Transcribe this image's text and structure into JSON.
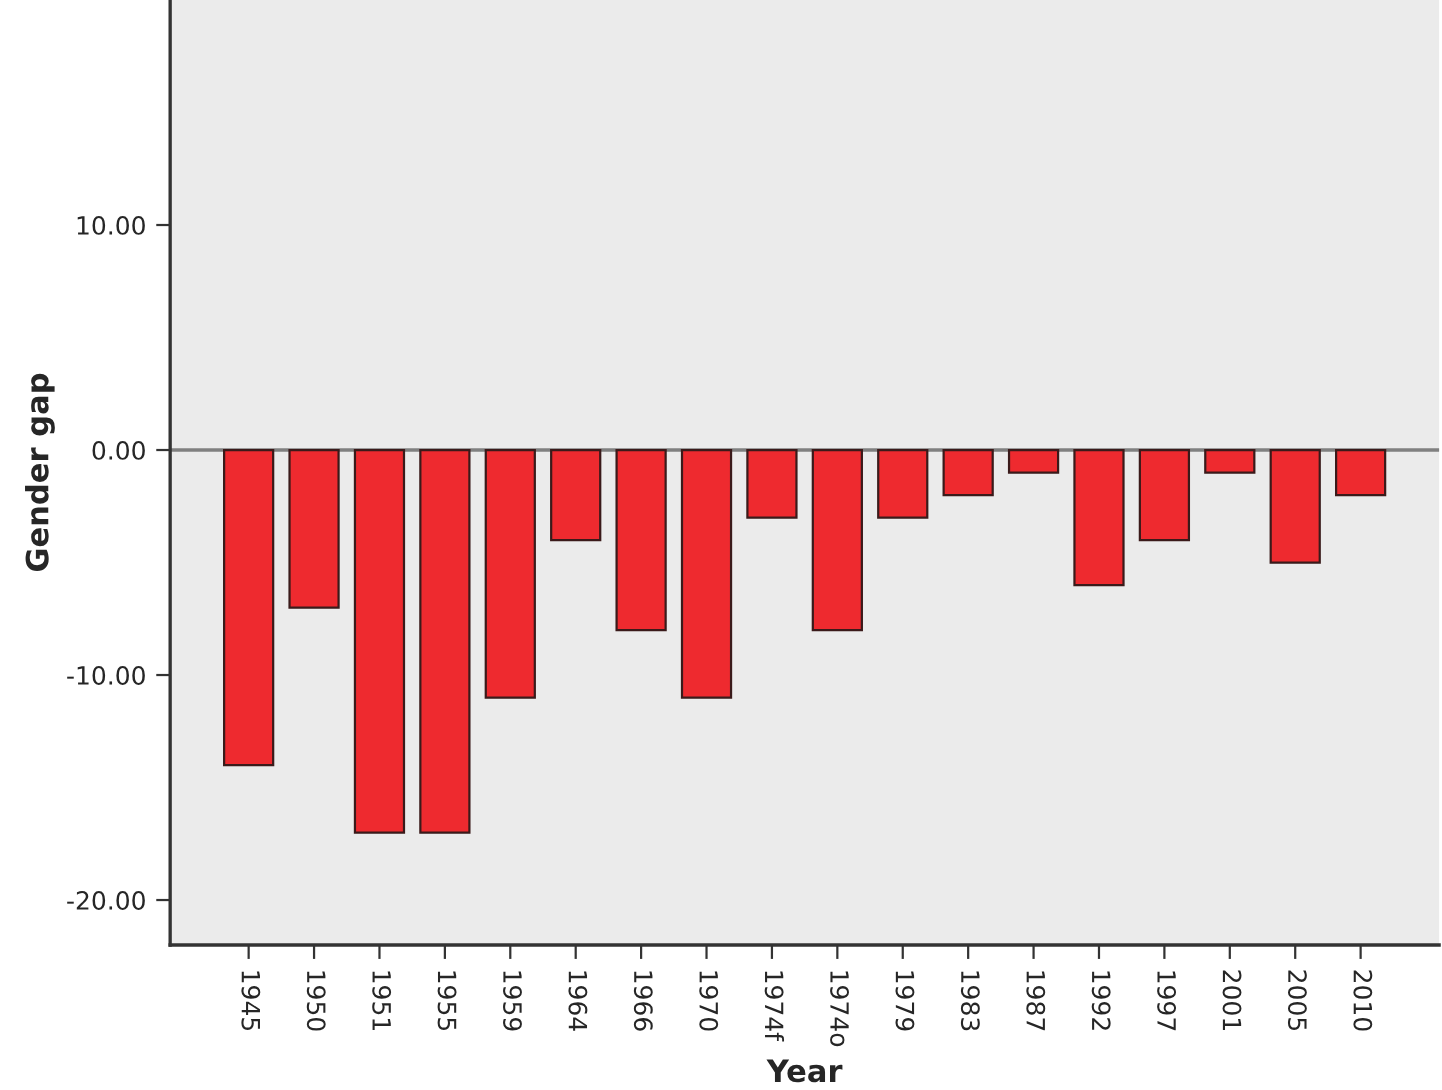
{
  "chart_data": {
    "type": "bar",
    "xlabel": "Year",
    "ylabel": "Gender gap",
    "categories": [
      "1945",
      "1950",
      "1951",
      "1955",
      "1959",
      "1964",
      "1966",
      "1970",
      "1974f",
      "1974o",
      "1979",
      "1983",
      "1987",
      "1992",
      "1997",
      "2001",
      "2005",
      "2010"
    ],
    "series": [
      {
        "color": "#ee2a2f",
        "values": [
          -14,
          -7,
          -17,
          -17,
          -11,
          -4,
          -8,
          -11,
          -3,
          -8,
          -3,
          -2,
          -1,
          -6,
          -4,
          -1,
          -5,
          -2
        ]
      }
    ],
    "ylim": [
      -22,
      20
    ],
    "yticks": [
      {
        "value": -20,
        "label": "-20.00"
      },
      {
        "value": -10,
        "label": "-10.00"
      },
      {
        "value": 0,
        "label": "0.00"
      },
      {
        "value": 10,
        "label": "10.00"
      }
    ],
    "ref_lines": [
      {
        "axis": "y",
        "value": 0,
        "color": "#808080"
      }
    ],
    "grid": false,
    "legend": false
  }
}
